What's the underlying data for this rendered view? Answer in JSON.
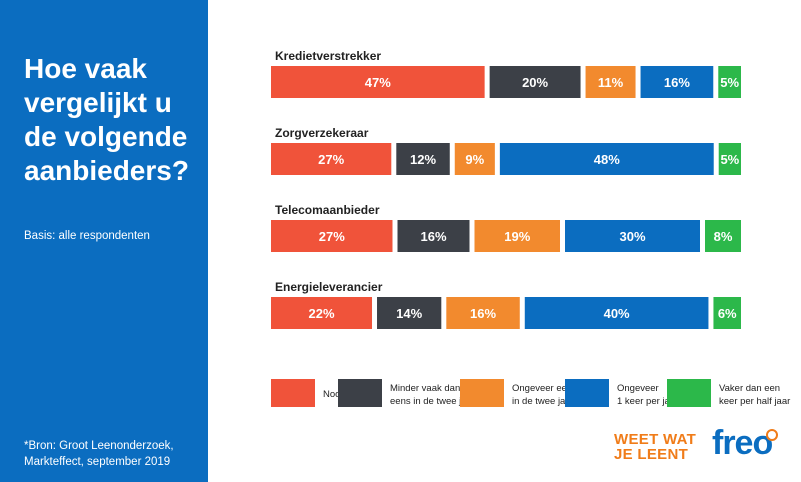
{
  "sidebar": {
    "title": "Hoe vaak vergelijkt u de volgende aanbieders?",
    "basis": "Basis: alle respondenten",
    "source": "*Bron: Groot Leenonderzoek, Markteffect, september 2019"
  },
  "brand": {
    "tagline_line1": "WEET WAT",
    "tagline_line2": "JE LEENT",
    "logo": "freo"
  },
  "colors": {
    "sidebar": "#0b6dc0",
    "nooit": "#f0533a",
    "minder": "#3c4047",
    "eens_twee_jaar": "#f28a2e",
    "keer_per_jaar": "#0b6dc0",
    "half_jaar": "#2cb84a",
    "brand_orange": "#f07c19"
  },
  "chart_data": {
    "type": "bar",
    "orientation": "horizontal",
    "stacked": true,
    "title": "Hoe vaak vergelijkt u de volgende aanbieders?",
    "categories": [
      "Kredietverstrekker",
      "Zorgverzekeraar",
      "Telecomaanbieder",
      "Energieleverancier"
    ],
    "series": [
      {
        "name": "Nooit",
        "values": [
          47,
          27,
          27,
          22
        ]
      },
      {
        "name": "Minder vaak dan eens in de twee jaar",
        "values": [
          20,
          12,
          16,
          14
        ]
      },
      {
        "name": "Ongeveer eens in de twee jaar",
        "values": [
          11,
          9,
          19,
          16
        ]
      },
      {
        "name": "Ongeveer 1 keer per jaar",
        "values": [
          16,
          48,
          30,
          40
        ]
      },
      {
        "name": "Vaker dan een keer per half jaar",
        "values": [
          5,
          5,
          8,
          6
        ]
      }
    ],
    "legend": [
      {
        "line1": "Nooit",
        "line2": ""
      },
      {
        "line1": "Minder vaak dan",
        "line2": "eens in de twee jaar"
      },
      {
        "line1": "Ongeveer eens",
        "line2": "in de twee jaar"
      },
      {
        "line1": "Ongeveer",
        "line2": "1 keer per jaar"
      },
      {
        "line1": "Vaker dan een",
        "line2": "keer per half jaar"
      }
    ],
    "legend_position": "bottom",
    "value_suffix": "%",
    "xlabel": "",
    "ylabel": "",
    "xlim": [
      0,
      100
    ],
    "grid": false
  }
}
